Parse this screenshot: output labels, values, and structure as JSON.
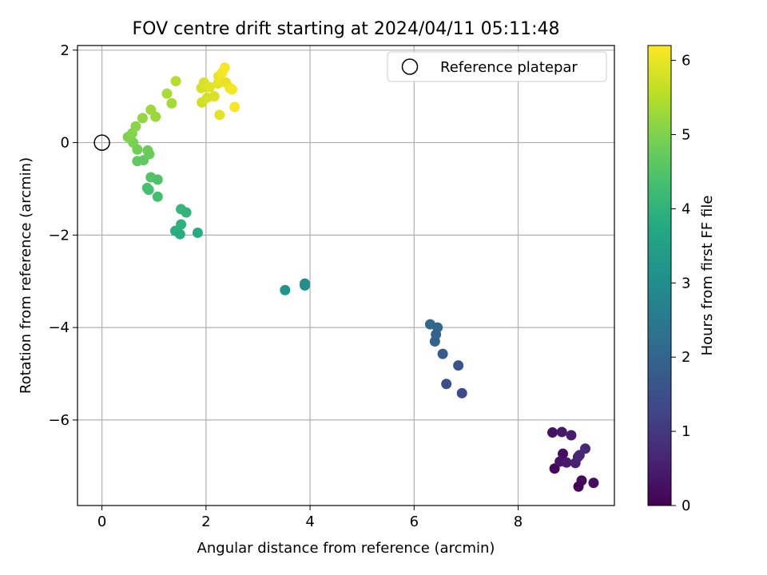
{
  "chart_data": {
    "type": "scatter",
    "title": "FOV centre drift starting at 2024/04/11 05:11:48",
    "xlabel": "Angular distance from reference (arcmin)",
    "ylabel": "Rotation from reference (arcmin)",
    "xlim": [
      -0.47,
      9.85
    ],
    "ylim": [
      -7.85,
      2.1
    ],
    "xticks": [
      0,
      2,
      4,
      6,
      8
    ],
    "yticks": [
      2,
      0,
      -2,
      -4,
      -6
    ],
    "xtick_labels": [
      "0",
      "2",
      "4",
      "6",
      "8"
    ],
    "ytick_labels": [
      "2",
      "0",
      "−2",
      "−4",
      "−6"
    ],
    "grid": true,
    "legend": {
      "location": "top-right",
      "entries": [
        "Reference platepar"
      ]
    },
    "reference_point": {
      "name": "Reference platepar",
      "x": 0,
      "y": 0
    },
    "colorbar": {
      "label": "Hours from first FF file",
      "min": 0,
      "max": 6.2,
      "ticks": [
        0,
        1,
        2,
        3,
        4,
        5,
        6
      ],
      "tick_labels": [
        "0",
        "1",
        "2",
        "3",
        "4",
        "5",
        "6"
      ],
      "colormap": "viridis"
    },
    "points": [
      {
        "x": 8.7,
        "y": -7.05,
        "c": 0.1
      },
      {
        "x": 8.66,
        "y": -6.27,
        "c": 0.3
      },
      {
        "x": 8.84,
        "y": -6.26,
        "c": 0.4
      },
      {
        "x": 9.02,
        "y": -6.33,
        "c": 0.5
      },
      {
        "x": 8.86,
        "y": -6.73,
        "c": 0.2
      },
      {
        "x": 8.8,
        "y": -6.9,
        "c": 0.35
      },
      {
        "x": 8.93,
        "y": -6.92,
        "c": 0.45
      },
      {
        "x": 9.1,
        "y": -6.93,
        "c": 0.55
      },
      {
        "x": 9.15,
        "y": -6.8,
        "c": 0.6
      },
      {
        "x": 9.18,
        "y": -6.76,
        "c": 0.65
      },
      {
        "x": 9.29,
        "y": -6.62,
        "c": 0.7
      },
      {
        "x": 9.22,
        "y": -7.31,
        "c": 0.15
      },
      {
        "x": 9.16,
        "y": -7.44,
        "c": 0.05
      },
      {
        "x": 9.45,
        "y": -7.36,
        "c": 0.25
      },
      {
        "x": 6.31,
        "y": -3.93,
        "c": 2.1
      },
      {
        "x": 6.45,
        "y": -4.0,
        "c": 2.05
      },
      {
        "x": 6.42,
        "y": -4.15,
        "c": 1.95
      },
      {
        "x": 6.4,
        "y": -4.3,
        "c": 1.9
      },
      {
        "x": 6.55,
        "y": -4.57,
        "c": 1.8
      },
      {
        "x": 6.85,
        "y": -4.82,
        "c": 1.6
      },
      {
        "x": 6.62,
        "y": -5.22,
        "c": 1.5
      },
      {
        "x": 6.92,
        "y": -5.42,
        "c": 1.4
      },
      {
        "x": 3.52,
        "y": -3.19,
        "c": 3.2
      },
      {
        "x": 3.9,
        "y": -3.05,
        "c": 3.0
      },
      {
        "x": 3.9,
        "y": -3.09,
        "c": 3.05
      },
      {
        "x": 1.41,
        "y": -1.91,
        "c": 3.9
      },
      {
        "x": 1.5,
        "y": -1.98,
        "c": 3.85
      },
      {
        "x": 1.52,
        "y": -1.77,
        "c": 3.95
      },
      {
        "x": 1.84,
        "y": -1.95,
        "c": 3.8
      },
      {
        "x": 1.52,
        "y": -1.44,
        "c": 4.1
      },
      {
        "x": 1.62,
        "y": -1.51,
        "c": 4.05
      },
      {
        "x": 0.87,
        "y": -0.98,
        "c": 4.4
      },
      {
        "x": 0.9,
        "y": -1.02,
        "c": 4.35
      },
      {
        "x": 1.07,
        "y": -1.17,
        "c": 4.3
      },
      {
        "x": 0.94,
        "y": -0.75,
        "c": 4.5
      },
      {
        "x": 1.07,
        "y": -0.8,
        "c": 4.45
      },
      {
        "x": 0.68,
        "y": -0.4,
        "c": 4.7
      },
      {
        "x": 0.8,
        "y": -0.38,
        "c": 4.65
      },
      {
        "x": 0.88,
        "y": -0.17,
        "c": 4.8
      },
      {
        "x": 0.91,
        "y": -0.25,
        "c": 4.75
      },
      {
        "x": 0.68,
        "y": -0.15,
        "c": 4.85
      },
      {
        "x": 0.6,
        "y": 0.0,
        "c": 4.95
      },
      {
        "x": 0.5,
        "y": 0.12,
        "c": 5.0
      },
      {
        "x": 0.58,
        "y": 0.2,
        "c": 5.05
      },
      {
        "x": 0.65,
        "y": 0.35,
        "c": 5.1
      },
      {
        "x": 0.78,
        "y": 0.53,
        "c": 5.2
      },
      {
        "x": 0.94,
        "y": 0.71,
        "c": 5.3
      },
      {
        "x": 1.03,
        "y": 0.56,
        "c": 5.25
      },
      {
        "x": 1.25,
        "y": 1.06,
        "c": 5.4
      },
      {
        "x": 1.34,
        "y": 0.85,
        "c": 5.35
      },
      {
        "x": 1.42,
        "y": 1.33,
        "c": 5.5
      },
      {
        "x": 1.91,
        "y": 1.18,
        "c": 5.8
      },
      {
        "x": 1.96,
        "y": 1.3,
        "c": 5.85
      },
      {
        "x": 1.92,
        "y": 0.87,
        "c": 5.75
      },
      {
        "x": 2.02,
        "y": 0.97,
        "c": 5.8
      },
      {
        "x": 2.07,
        "y": 1.2,
        "c": 5.9
      },
      {
        "x": 2.16,
        "y": 1.0,
        "c": 5.85
      },
      {
        "x": 2.23,
        "y": 1.28,
        "c": 5.95
      },
      {
        "x": 2.24,
        "y": 1.43,
        "c": 6.0
      },
      {
        "x": 2.28,
        "y": 1.36,
        "c": 6.05
      },
      {
        "x": 2.31,
        "y": 1.51,
        "c": 6.1
      },
      {
        "x": 2.36,
        "y": 1.62,
        "c": 6.15
      },
      {
        "x": 2.38,
        "y": 1.3,
        "c": 6.0
      },
      {
        "x": 2.46,
        "y": 1.18,
        "c": 6.05
      },
      {
        "x": 2.5,
        "y": 1.15,
        "c": 6.1
      },
      {
        "x": 2.26,
        "y": 0.6,
        "c": 5.95
      },
      {
        "x": 2.55,
        "y": 0.77,
        "c": 6.15
      }
    ]
  }
}
